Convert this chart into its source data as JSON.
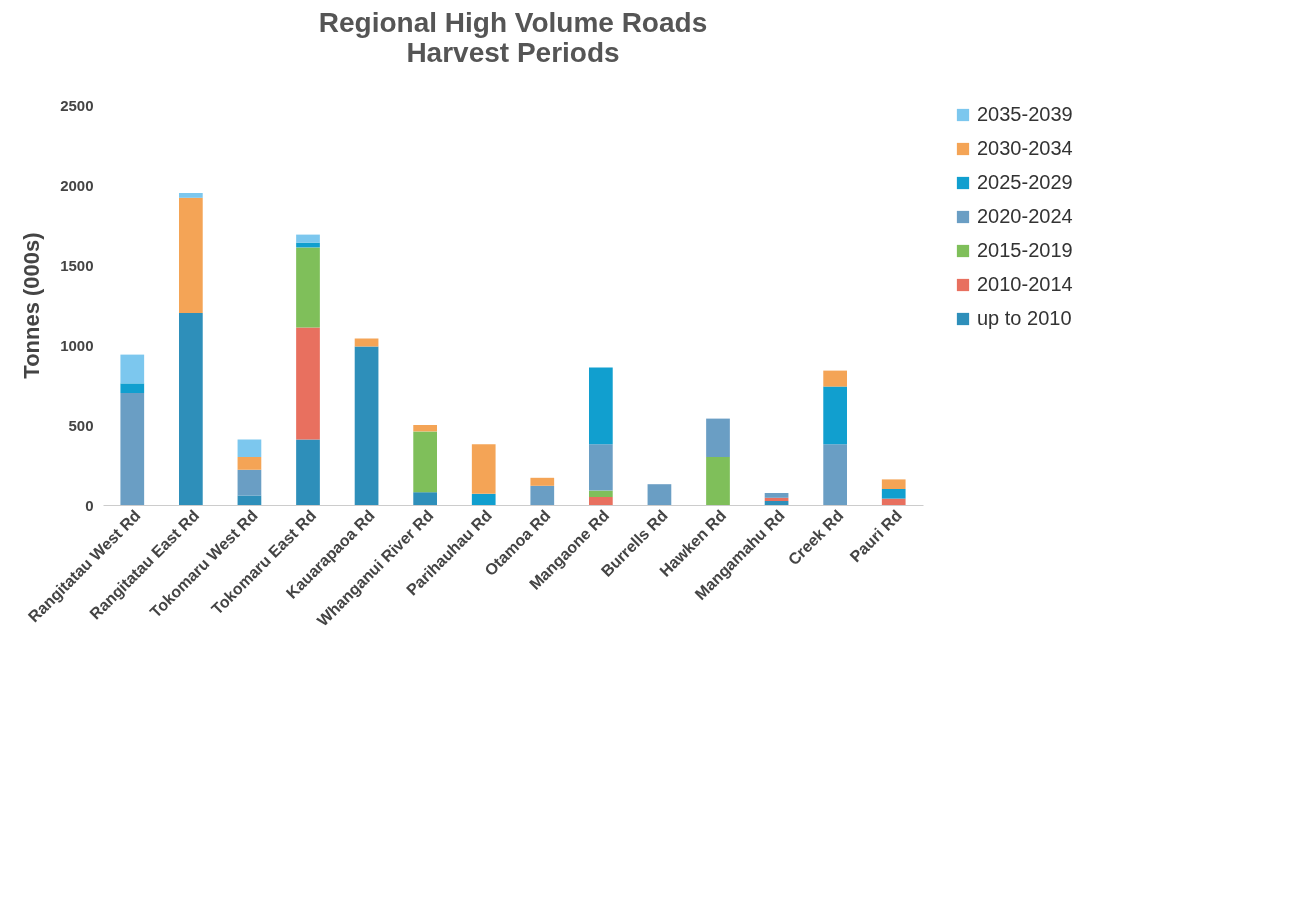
{
  "chart_data": {
    "type": "bar",
    "title": [
      "Regional High Volume Roads",
      "Harvest Periods"
    ],
    "ylabel": "Tonnes (000s)",
    "stacked": true,
    "legend": "right",
    "grid": false,
    "categories": [
      "Rangitatau West Rd",
      "Rangitatau East Rd",
      "Tokomaru West Rd",
      "Tokomaru East Rd",
      "Kauarapaoa Rd",
      "Whanganui River Rd",
      "Parihauhau Rd",
      "Otamoa Rd",
      "Mangaone Rd",
      "Burrells Rd",
      "Hawken Rd",
      "Mangamahu Rd",
      "Creek Rd",
      "Pauri Rd"
    ],
    "ylim": [
      0,
      2500
    ],
    "yticks": [
      0,
      500,
      1000,
      1500,
      2000,
      2500
    ],
    "series": [
      {
        "name": "up to 2010",
        "color": "#2e8fba",
        "values": [
          null,
          1200,
          60,
          410,
          990,
          80,
          null,
          null,
          null,
          null,
          null,
          25,
          null,
          null
        ]
      },
      {
        "name": "2010-2014",
        "color": "#e8705f",
        "values": [
          null,
          null,
          null,
          700,
          null,
          null,
          null,
          null,
          50,
          null,
          null,
          20,
          null,
          40
        ]
      },
      {
        "name": "2015-2019",
        "color": "#7fbf5a",
        "values": [
          null,
          null,
          null,
          500,
          null,
          380,
          null,
          null,
          40,
          null,
          300,
          null,
          null,
          null
        ]
      },
      {
        "name": "2020-2024",
        "color": "#6a9ec4",
        "values": [
          700,
          null,
          160,
          null,
          null,
          null,
          null,
          120,
          290,
          130,
          240,
          30,
          380,
          null
        ]
      },
      {
        "name": "2025-2029",
        "color": "#119fcf",
        "values": [
          60,
          null,
          null,
          30,
          null,
          null,
          70,
          null,
          480,
          null,
          null,
          null,
          360,
          60
        ]
      },
      {
        "name": "2030-2034",
        "color": "#f4a456",
        "values": [
          null,
          720,
          80,
          null,
          50,
          40,
          310,
          50,
          null,
          null,
          null,
          null,
          100,
          60
        ]
      },
      {
        "name": "2035-2039",
        "color": "#7cc7ee",
        "values": [
          180,
          30,
          110,
          50,
          null,
          null,
          null,
          null,
          null,
          null,
          null,
          null,
          null,
          null
        ]
      }
    ]
  }
}
